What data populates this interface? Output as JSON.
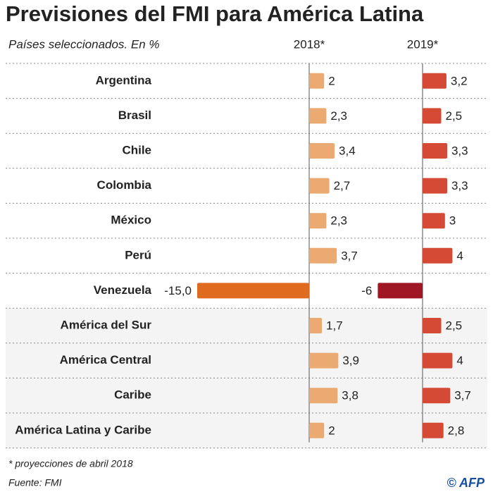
{
  "chart_data": {
    "type": "bar",
    "orientation": "horizontal",
    "title": "Previsiones del FMI para América Latina",
    "subtitle": "Países seleccionados. En %",
    "categories": [
      "Argentina",
      "Brasil",
      "Chile",
      "Colombia",
      "México",
      "Perú",
      "Venezuela",
      "América del Sur",
      "América Central",
      "Caribe",
      "América Latina y Caribe"
    ],
    "series": [
      {
        "name": "2018*",
        "color": "#ebaa72",
        "negative_color": "#e06a1f",
        "values": [
          2,
          2.3,
          3.4,
          2.7,
          2.3,
          3.7,
          -15.0,
          1.7,
          3.9,
          3.8,
          2
        ],
        "value_labels": [
          "2",
          "2,3",
          "3,4",
          "2,7",
          "2,3",
          "3,7",
          "-15,0",
          "1,7",
          "3,9",
          "3,8",
          "2"
        ]
      },
      {
        "name": "2019*",
        "color": "#d44a35",
        "negative_color": "#a01624",
        "values": [
          3.2,
          2.5,
          3.3,
          3.3,
          3,
          4,
          -6,
          2.5,
          4,
          3.7,
          2.8
        ],
        "value_labels": [
          "3,2",
          "2,5",
          "3,3",
          "3,3",
          "3",
          "4",
          "-6",
          "2,5",
          "4",
          "3,7",
          "2,8"
        ]
      }
    ],
    "xlim": [
      -15,
      4
    ],
    "note": "* proyecciones de abril 2018",
    "source": "Fuente: FMI",
    "credit": "© AFP"
  }
}
